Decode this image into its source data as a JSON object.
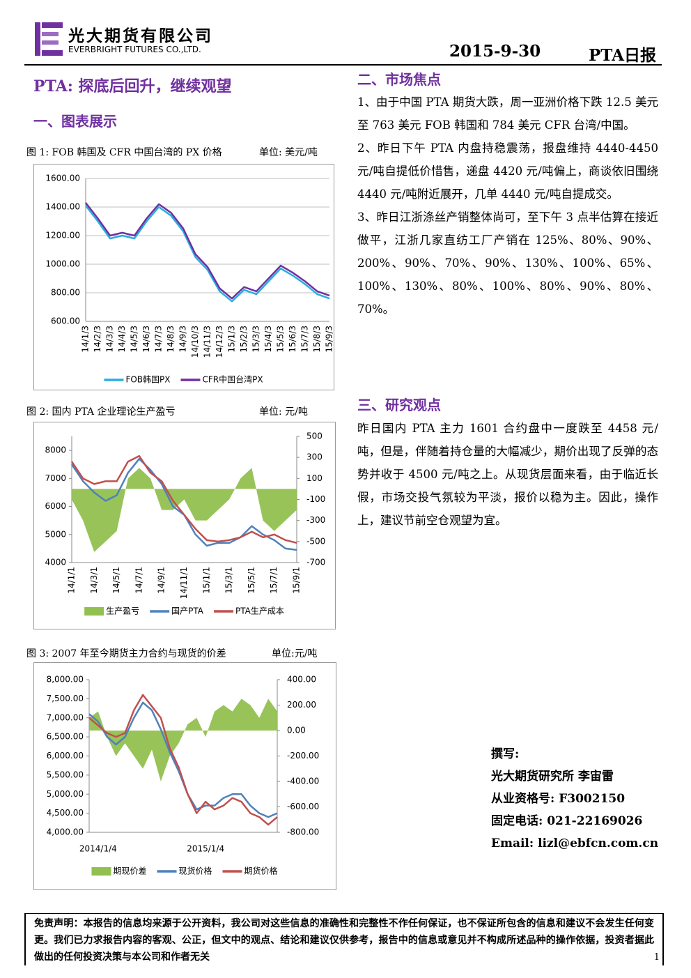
{
  "header": {
    "company_cn": "光大期货有限公司",
    "company_en": "EVERBRIGHT FUTURES CO.,LTD.",
    "date": "2015-9-30",
    "report": "PTA日报"
  },
  "title": "PTA: 探底后回升，继续观望",
  "section1_heading": "一、图表展示",
  "chart_data": [
    {
      "type": "line",
      "title": "图 1: FOB 韩国及 CFR 中国台湾的 PX 价格",
      "unit_label": "单位: 美元/吨",
      "categories": [
        "14/1/3",
        "14/2/3",
        "14/3/3",
        "14/4/3",
        "14/5/3",
        "14/6/3",
        "14/7/3",
        "14/8/3",
        "14/9/3",
        "14/10/3",
        "14/11/3",
        "14/12/3",
        "15/1/3",
        "15/2/3",
        "15/3/3",
        "15/4/3",
        "15/5/3",
        "15/6/3",
        "15/7/3",
        "15/8/3",
        "15/9/3"
      ],
      "series": [
        {
          "name": "FOB韩国PX",
          "color": "#29aee0",
          "values": [
            1410,
            1300,
            1180,
            1200,
            1180,
            1300,
            1400,
            1340,
            1230,
            1050,
            960,
            810,
            740,
            820,
            790,
            880,
            970,
            920,
            860,
            790,
            760
          ]
        },
        {
          "name": "CFR中国台湾PX",
          "color": "#7030a0",
          "values": [
            1430,
            1320,
            1200,
            1220,
            1200,
            1320,
            1420,
            1360,
            1250,
            1070,
            980,
            830,
            760,
            840,
            810,
            900,
            990,
            940,
            880,
            810,
            780
          ]
        }
      ],
      "ylim": [
        600,
        1600
      ],
      "yticks": [
        {
          "value": 600,
          "label": "600.00"
        },
        {
          "value": 800,
          "label": "800.00"
        },
        {
          "value": 1000,
          "label": "1000.00"
        },
        {
          "value": 1200,
          "label": "1200.00"
        },
        {
          "value": 1400,
          "label": "1400.00"
        },
        {
          "value": 1600,
          "label": "1600.00"
        }
      ],
      "grid": true
    },
    {
      "type": "combo",
      "title": "图 2: 国内 PTA 企业理论生产盈亏",
      "unit_label": "单位: 元/吨",
      "categories": [
        "14/1/1",
        null,
        "14/3/1",
        null,
        "14/5/1",
        null,
        "14/7/1",
        null,
        "14/9/1",
        null,
        "14/11/1",
        null,
        "15/1/1",
        null,
        "15/3/1",
        null,
        "15/5/1",
        null,
        "15/7/1",
        null,
        "15/9/1"
      ],
      "series": [
        {
          "name": "生产盈亏",
          "type": "area",
          "axis": "y2",
          "color": "#92c050",
          "values": [
            -100,
            -300,
            -600,
            -500,
            -400,
            100,
            200,
            100,
            -200,
            -200,
            -100,
            -300,
            -300,
            -200,
            -100,
            100,
            200,
            -300,
            -400,
            -300,
            -200
          ]
        },
        {
          "name": "国产PTA",
          "type": "line",
          "color": "#4f81bd",
          "values": [
            7500,
            6900,
            6500,
            6200,
            6400,
            7200,
            7700,
            7300,
            6800,
            6000,
            5700,
            5000,
            4600,
            4700,
            4700,
            4900,
            5300,
            5000,
            4800,
            4500,
            4450
          ]
        },
        {
          "name": "PTA生产成本",
          "type": "line",
          "color": "#c0504d",
          "values": [
            7600,
            7000,
            6800,
            6900,
            6900,
            7600,
            7800,
            7200,
            6900,
            6200,
            5700,
            5200,
            4800,
            4750,
            4800,
            4900,
            5100,
            4900,
            5000,
            4800,
            4700
          ]
        }
      ],
      "ylim": [
        4000,
        8500
      ],
      "yticks": [
        4000,
        5000,
        6000,
        7000,
        8000
      ],
      "y2lim": [
        -700,
        500
      ],
      "y2ticks": [
        -700,
        -500,
        -300,
        -100,
        100,
        300,
        500
      ],
      "grid": false
    },
    {
      "type": "combo",
      "title": "图 3: 2007 年至今期货主力合约与现货的价差",
      "unit_label": "单位:元/吨",
      "categories": [
        null,
        "2014/1/4",
        null,
        null,
        null,
        null,
        null,
        null,
        null,
        null,
        null,
        null,
        null,
        "2015/1/4",
        null,
        null,
        null,
        null,
        null,
        null,
        null,
        null
      ],
      "series": [
        {
          "name": "期现价差",
          "type": "area",
          "axis": "y2",
          "color": "#92c050",
          "values": [
            100,
            150,
            -50,
            -200,
            -100,
            -200,
            -300,
            -150,
            -400,
            -200,
            -100,
            50,
            100,
            -50,
            150,
            200,
            150,
            250,
            200,
            100,
            250,
            150
          ]
        },
        {
          "name": "现货价格",
          "type": "line",
          "color": "#4f81bd",
          "values": [
            7100,
            6900,
            6500,
            6300,
            6500,
            7000,
            7400,
            7200,
            6700,
            6100,
            5600,
            5000,
            4600,
            4700,
            4700,
            4900,
            5000,
            5000,
            4700,
            4500,
            4400,
            4500
          ]
        },
        {
          "name": "期货价格",
          "type": "line",
          "color": "#c0504d",
          "values": [
            7000,
            6800,
            6600,
            6500,
            6600,
            7200,
            7600,
            7300,
            7000,
            6200,
            5700,
            5000,
            4500,
            4800,
            4600,
            4700,
            4900,
            4800,
            4500,
            4400,
            4200,
            4400
          ]
        }
      ],
      "ylim": [
        4000,
        8000
      ],
      "yticks": [
        {
          "value": 4000,
          "label": "4,000.00"
        },
        {
          "value": 4500,
          "label": "4,500.00"
        },
        {
          "value": 5000,
          "label": "5,000.00"
        },
        {
          "value": 5500,
          "label": "5,500.00"
        },
        {
          "value": 6000,
          "label": "6,000.00"
        },
        {
          "value": 6500,
          "label": "6,500.00"
        },
        {
          "value": 7000,
          "label": "7,000.00"
        },
        {
          "value": 7500,
          "label": "7,500.00"
        },
        {
          "value": 8000,
          "label": "8,000.00"
        }
      ],
      "y2lim": [
        -800,
        400
      ],
      "y2ticks": [
        {
          "value": -800,
          "label": "-800.00"
        },
        {
          "value": -600,
          "label": "-600.00"
        },
        {
          "value": -400,
          "label": "-400.00"
        },
        {
          "value": -200,
          "label": "-200.00"
        },
        {
          "value": 0,
          "label": "0.00"
        },
        {
          "value": 200,
          "label": "200.00"
        },
        {
          "value": 400,
          "label": "400.00"
        }
      ],
      "grid": false
    }
  ],
  "section2": {
    "heading": "二、市场焦点",
    "paragraphs": [
      "1、由于中国 PTA 期货大跌，周一亚洲价格下跌 12.5 美元至 763 美元 FOB 韩国和 784 美元 CFR 台湾/中国。",
      "2、昨日下午 PTA 内盘持稳震荡，报盘维持 4440-4450 元/吨自提低价惜售，递盘 4420 元/吨偏上，商谈依旧围绕 4440 元/吨附近展开，几单 4440 元/吨自提成交。",
      "3、昨日江浙涤丝产销整体尚可，至下午 3 点半估算在接近做平，江浙几家直纺工厂产销在 125%、80%、90%、200%、90%、70%、90%、130%、100%、65%、100%、130%、80%、100%、80%、90%、80%、70%。"
    ]
  },
  "section3": {
    "heading": "三、研究观点",
    "paragraphs": [
      "昨日国内 PTA 主力 1601 合约盘中一度跌至 4458 元/吨，但是，伴随着持仓量的大幅减少，期价出现了反弹的态势并收于 4500 元/吨之上。从现货层面来看，由于临近长假，市场交投气氛较为平淡，报价以稳为主。因此，操作上，建议节前空仓观望为宜。"
    ]
  },
  "author": {
    "lines": [
      "撰写:",
      "光大期货研究所 李宙雷",
      "从业资格号: F3002150",
      "固定电话: 021-22169026",
      "Email: lizl@ebfcn.com.cn"
    ]
  },
  "disclaimer": {
    "text": "免责声明：本报告的信息均来源于公开资料，我公司对这些信息的准确性和完整性不作任何保证，也不保证所包含的信息和建议不会发生任何变更。我们已力求报告内容的客观、公正，但文中的观点、结论和建议仅供参考，报告中的信息或意见并不构成所述品种的操作依据，投资者据此做出的任何投资决策与本公司和作者无关",
    "page": "1"
  }
}
